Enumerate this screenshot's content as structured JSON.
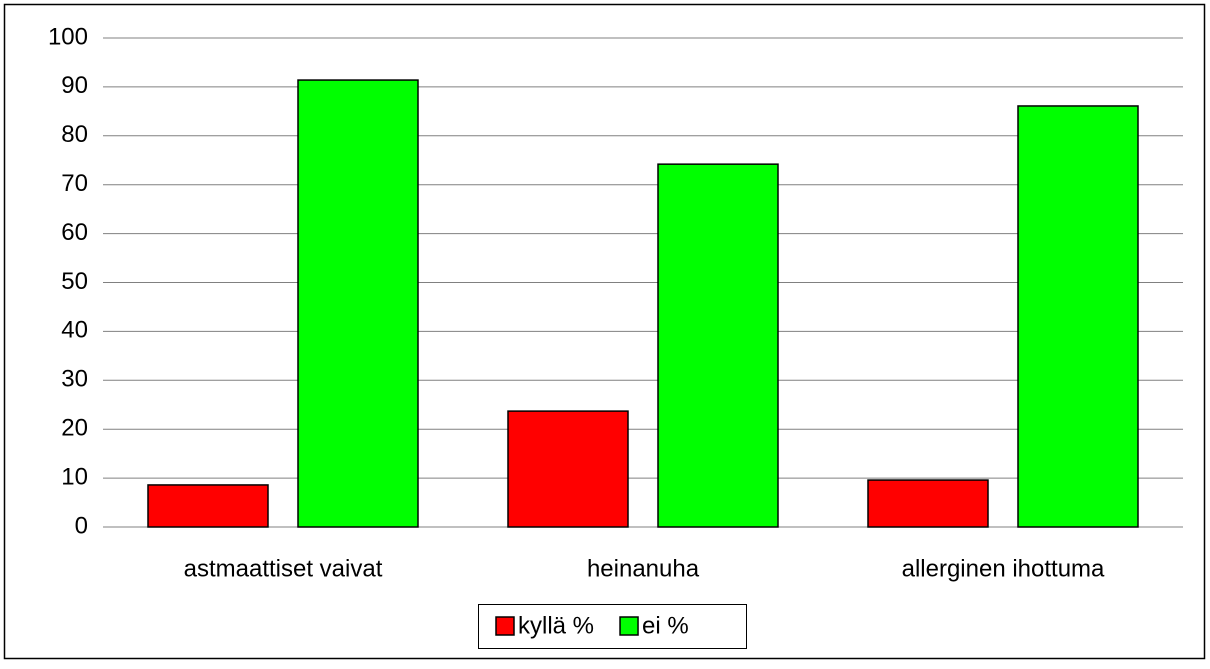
{
  "chart_data": {
    "type": "bar",
    "categories": [
      "astmaattiset vaivat",
      "heinanuha",
      "allerginen ihottuma"
    ],
    "series": [
      {
        "name": "kyllä %",
        "color": "#ff0000",
        "values": [
          8.6,
          23.7,
          9.6
        ]
      },
      {
        "name": "ei %",
        "color": "#00ff00",
        "values": [
          91.4,
          74.2,
          86.1
        ]
      }
    ],
    "ylim": [
      0,
      100
    ],
    "yticks": [
      0,
      10,
      20,
      30,
      40,
      50,
      60,
      70,
      80,
      90,
      100
    ],
    "grid": true,
    "legend": "bottom"
  }
}
